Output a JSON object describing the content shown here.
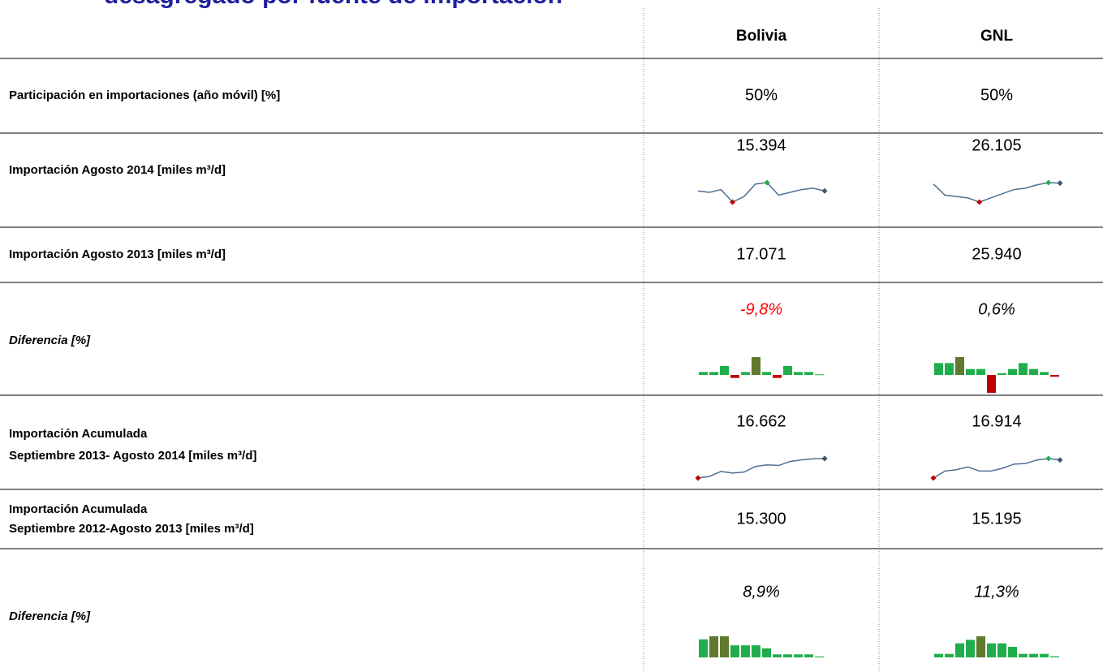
{
  "header": {
    "title": "desagregado por fuente de importación",
    "columns": [
      "Bolivia",
      "GNL"
    ]
  },
  "sparkline_colors": {
    "line": "#4f6f94",
    "min": "#c00000",
    "max": "#1fae4b",
    "last": "#44546a",
    "positive": "#1fae4b",
    "negative": "#c00000",
    "max_bar": "#5f7a2c"
  },
  "rows": [
    {
      "label": [
        "Participación en importaciones (año móvil) [%]"
      ],
      "italic": false,
      "cells": [
        {
          "text": "50%"
        },
        {
          "text": "50%"
        }
      ]
    },
    {
      "label": [
        "Importación Agosto 2014 [miles m³/d]"
      ],
      "italic": false,
      "cells": [
        {
          "text": "15.394",
          "sparkline": {
            "type": "line",
            "values": [
              0.6,
              0.55,
              0.65,
              0.2,
              0.4,
              0.85,
              0.9,
              0.45,
              0.55,
              0.65,
              0.7,
              0.6
            ]
          }
        },
        {
          "text": "26.105",
          "sparkline": {
            "type": "line",
            "values": [
              0.95,
              0.55,
              0.5,
              0.45,
              0.3,
              0.45,
              0.6,
              0.75,
              0.8,
              0.92,
              1.0,
              0.98
            ]
          }
        }
      ]
    },
    {
      "label": [
        "Importación Agosto 2013 [miles m³/d]"
      ],
      "italic": false,
      "cells": [
        {
          "text": "17.071"
        },
        {
          "text": "25.940"
        }
      ]
    },
    {
      "label": [
        "Diferencia [%]"
      ],
      "italic": true,
      "cells": [
        {
          "text": "-9,8%",
          "color": "#ff0000",
          "sparkline": {
            "type": "bar",
            "values": [
              1,
              1,
              3,
              -1,
              1,
              6,
              1,
              -1,
              3,
              1,
              1,
              0.2
            ]
          }
        },
        {
          "text": "0,6%",
          "sparkline": {
            "type": "bar",
            "values": [
              2,
              2,
              3,
              1,
              1,
              -3,
              0.3,
              1,
              2,
              1,
              0.5,
              -0.3
            ]
          }
        }
      ]
    },
    {
      "label": [
        "Importación Acumulada",
        "Septiembre 2013- Agosto 2014 [miles m³/d]"
      ],
      "italic": false,
      "cells": [
        {
          "text": "16.662",
          "sparkline": {
            "type": "line",
            "values": [
              0.1,
              0.15,
              0.3,
              0.25,
              0.28,
              0.45,
              0.5,
              0.48,
              0.6,
              0.65,
              0.68,
              0.69
            ]
          }
        },
        {
          "text": "16.914",
          "sparkline": {
            "type": "line",
            "values": [
              0.1,
              0.35,
              0.4,
              0.5,
              0.35,
              0.35,
              0.45,
              0.6,
              0.62,
              0.75,
              0.8,
              0.75
            ]
          }
        }
      ]
    },
    {
      "label": [
        "Importación Acumulada",
        "Septiembre 2012-Agosto 2013  [miles m³/d]"
      ],
      "italic": false,
      "cells": [
        {
          "text": "15.300"
        },
        {
          "text": "15.195"
        }
      ]
    },
    {
      "label": [
        "Diferencia [%]"
      ],
      "italic": true,
      "cells": [
        {
          "text": "8,9%",
          "sparkline": {
            "type": "bar",
            "values": [
              6,
              7,
              7,
              4,
              4,
              4,
              3,
              1,
              1,
              1,
              1,
              0.3
            ]
          }
        },
        {
          "text": "11,3%",
          "sparkline": {
            "type": "bar",
            "values": [
              1,
              1,
              4,
              5,
              6,
              4,
              4,
              3,
              1,
              1,
              1,
              0.3
            ]
          }
        }
      ]
    }
  ]
}
